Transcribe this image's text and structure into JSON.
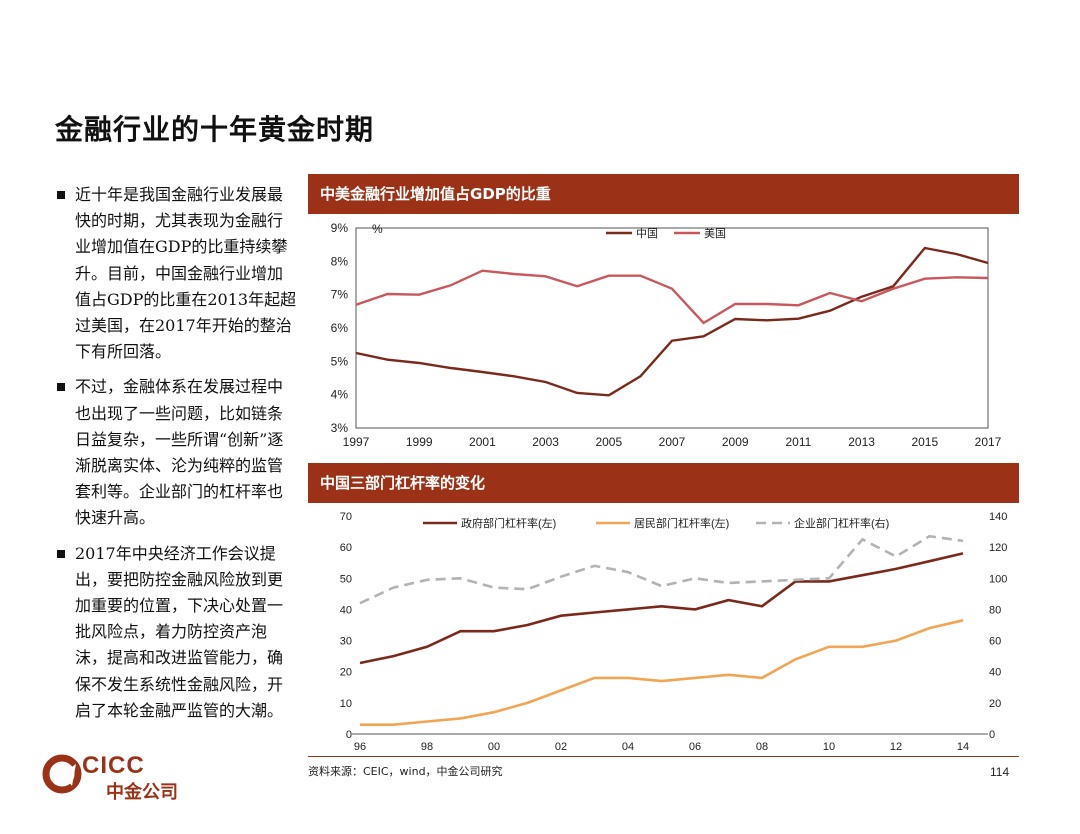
{
  "page": {
    "title": "金融行业的十年黄金时期",
    "page_number": "114",
    "source": "资料来源：CEIC，wind，中金公司研究",
    "logo_en": "CICC",
    "logo_cn": "中金公司"
  },
  "bullets": [
    "近十年是我国金融行业发展最快的时期，尤其表现为金融行业增加值在GDP的比重持续攀升。目前，中国金融行业增加值占GDP的比重在2013年起超过美国，在2017年开始的整治下有所回落。",
    "不过，金融体系在发展过程中也出现了一些问题，比如链条日益复杂，一些所谓“创新”逐渐脱离实体、沦为纯粹的监管套利等。企业部门的杠杆率也快速升高。",
    "2017年中央经济工作会议提出，要把防控金融风险放到更加重要的位置，下决心处置一批风险点，着力防控资产泡沫，提高和改进监管能力，确保不发生系统性金融风险，开启了本轮金融严监管的大潮。"
  ],
  "colors": {
    "accent": "#9b3218",
    "china": "#7a2a1c",
    "usa": "#c9585e",
    "household": "#f0a655",
    "corporate": "#b3b3b3"
  },
  "chart_data": [
    {
      "type": "line",
      "title": "中美金融行业增加值占GDP的比重",
      "unit_label": "%",
      "x": [
        1997,
        1998,
        1999,
        2000,
        2001,
        2002,
        2003,
        2004,
        2005,
        2006,
        2007,
        2008,
        2009,
        2010,
        2011,
        2012,
        2013,
        2014,
        2015,
        2016,
        2017
      ],
      "x_ticks": [
        "1997",
        "1999",
        "2001",
        "2003",
        "2005",
        "2007",
        "2009",
        "2011",
        "2013",
        "2015",
        "2017"
      ],
      "y_ticks": [
        "3%",
        "4%",
        "5%",
        "6%",
        "7%",
        "8%",
        "9%"
      ],
      "ylim": [
        3,
        9
      ],
      "legend_position": "top-right",
      "series": [
        {
          "name": "中国",
          "values": [
            5.25,
            5.05,
            4.95,
            4.8,
            4.68,
            4.55,
            4.38,
            4.05,
            3.98,
            4.55,
            5.62,
            5.75,
            6.27,
            6.23,
            6.28,
            6.52,
            6.94,
            7.25,
            8.4,
            8.22,
            7.95
          ]
        },
        {
          "name": "美国",
          "values": [
            6.7,
            7.02,
            7.0,
            7.28,
            7.72,
            7.62,
            7.55,
            7.25,
            7.57,
            7.57,
            7.18,
            6.15,
            6.72,
            6.72,
            6.68,
            7.05,
            6.8,
            7.18,
            7.48,
            7.52,
            7.5
          ]
        }
      ]
    },
    {
      "type": "line",
      "title": "中国三部门杠杆率的变化",
      "x": [
        1996,
        1997,
        1998,
        1999,
        2000,
        2001,
        2002,
        2003,
        2004,
        2005,
        2006,
        2007,
        2008,
        2009,
        2010,
        2011,
        2012,
        2013,
        2014
      ],
      "x_ticks": [
        "96",
        "98",
        "00",
        "02",
        "04",
        "06",
        "08",
        "10",
        "12",
        "14"
      ],
      "y_left_ticks": [
        "0",
        "10",
        "20",
        "30",
        "40",
        "50",
        "60",
        "70"
      ],
      "y_right_ticks": [
        "0",
        "20",
        "40",
        "60",
        "80",
        "100",
        "120",
        "140"
      ],
      "ylim_left": [
        0,
        70
      ],
      "ylim_right": [
        0,
        140
      ],
      "legend_position": "top",
      "series": [
        {
          "name": "政府部门杠杆率(左)",
          "axis": "left",
          "values": [
            22.8,
            25,
            28,
            33,
            33,
            35,
            38,
            39,
            40,
            41,
            40,
            43,
            41,
            49,
            49,
            51,
            53,
            55.5,
            58
          ]
        },
        {
          "name": "居民部门杠杆率(左)",
          "axis": "left",
          "values": [
            3,
            3,
            4,
            5,
            7,
            10,
            14,
            18,
            18,
            17,
            18,
            19,
            18,
            24,
            28,
            28,
            30,
            34,
            36.5
          ]
        },
        {
          "name": "企业部门杠杆率(右)",
          "axis": "right",
          "values": [
            84,
            94,
            99,
            100,
            94,
            93,
            101,
            108,
            104,
            95,
            100,
            97,
            98,
            99,
            100,
            125,
            114,
            127,
            124
          ]
        }
      ]
    }
  ]
}
